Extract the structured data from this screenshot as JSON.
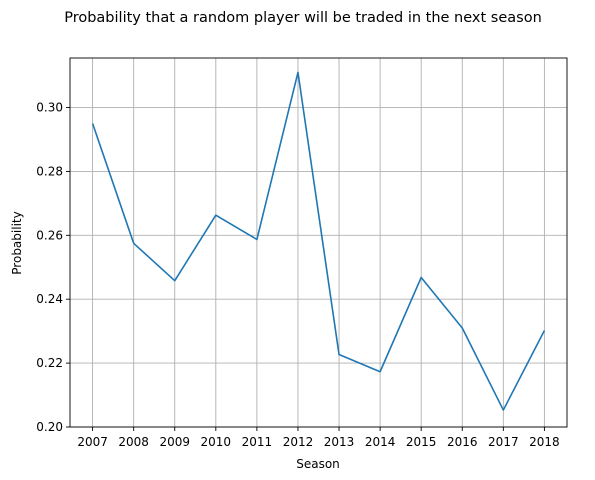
{
  "chart_data": {
    "type": "line",
    "title": "Probability that a random player will be traded in the next season",
    "xlabel": "Season",
    "ylabel": "Probability",
    "x": [
      2007,
      2008,
      2009,
      2010,
      2011,
      2012,
      2013,
      2014,
      2015,
      2016,
      2017,
      2018
    ],
    "series": [
      {
        "values": [
          0.295,
          0.2575,
          0.2458,
          0.2663,
          0.2587,
          0.311,
          0.2227,
          0.2173,
          0.2468,
          0.231,
          0.2053,
          0.2302
        ],
        "color": "#1f77b4"
      }
    ],
    "xlim": [
      2006.45,
      2018.55
    ],
    "ylim": [
      0.2,
      0.3155
    ],
    "yticks": [
      "0.20",
      "0.22",
      "0.24",
      "0.26",
      "0.28",
      "0.30"
    ],
    "xticks": [
      "2007",
      "2008",
      "2009",
      "2010",
      "2011",
      "2012",
      "2013",
      "2014",
      "2015",
      "2016",
      "2017",
      "2018"
    ],
    "grid": true,
    "legend": "none"
  }
}
